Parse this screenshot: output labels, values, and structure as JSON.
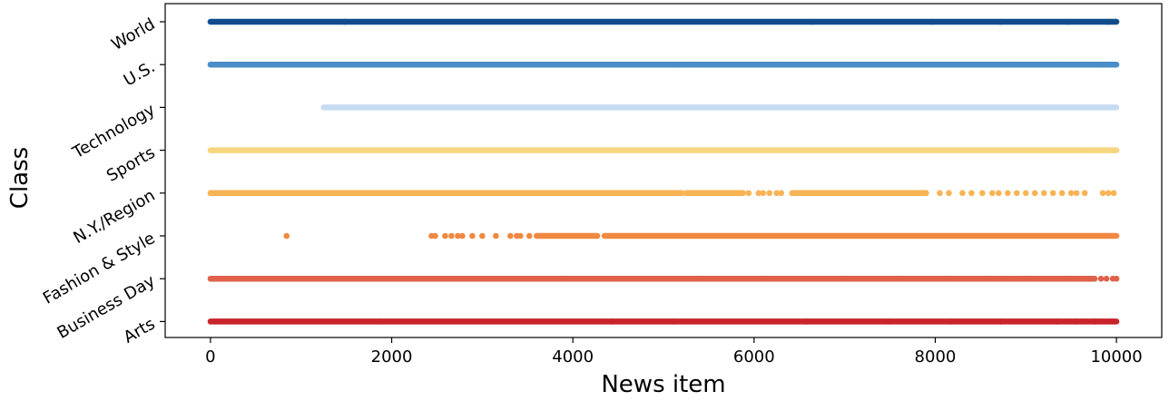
{
  "chart_data": {
    "type": "scatter",
    "title": "",
    "xlabel": "News item",
    "ylabel": "Class",
    "xlim": [
      -500,
      10500
    ],
    "xticks": [
      0,
      2000,
      4000,
      6000,
      8000,
      10000
    ],
    "xtick_labels": [
      "0",
      "2000",
      "4000",
      "6000",
      "8000",
      "10000"
    ],
    "categories": [
      "Arts",
      "Business Day",
      "Fashion & Style",
      "N.Y./Region",
      "Sports",
      "Technology",
      "U.S.",
      "World"
    ],
    "grid": false,
    "legend": false,
    "series": [
      {
        "category": "Arts",
        "color": "#c9232b",
        "dense_ranges": [
          [
            0,
            10000
          ]
        ],
        "points": [
          1880,
          4430,
          5120,
          6580,
          7480,
          8160,
          8720,
          9340,
          9550,
          9760,
          9950
        ]
      },
      {
        "category": "Business Day",
        "color": "#e0614a",
        "dense_ranges": [
          [
            0,
            9760
          ]
        ],
        "points": [
          3920,
          5410,
          6130,
          7000,
          7620,
          8140,
          8560,
          8800,
          9040,
          9480,
          9830,
          9890,
          9960,
          10000
        ]
      },
      {
        "category": "Fashion & Style",
        "color": "#f08840",
        "dense_ranges": [
          [
            3600,
            4270
          ],
          [
            4350,
            10000
          ]
        ],
        "points": [
          840,
          2440,
          2480,
          2590,
          2660,
          2730,
          2780,
          2890,
          3000,
          3150,
          3310,
          3380,
          3420,
          3520
        ]
      },
      {
        "category": "N.Y./Region",
        "color": "#f8b354",
        "dense_ranges": [
          [
            0,
            5200
          ],
          [
            5250,
            5880
          ],
          [
            6420,
            7900
          ]
        ],
        "points": [
          5940,
          6050,
          6100,
          6170,
          6250,
          6300,
          8050,
          8150,
          8300,
          8400,
          8520,
          8630,
          8700,
          8800,
          8900,
          9000,
          9100,
          9200,
          9300,
          9400,
          9500,
          9560,
          9650,
          9850,
          9910,
          9970
        ]
      },
      {
        "category": "Sports",
        "color": "#f6d57f",
        "dense_ranges": [
          [
            0,
            9600
          ],
          [
            9620,
            10000
          ]
        ],
        "points": []
      },
      {
        "category": "Technology",
        "color": "#c7dcf0",
        "dense_ranges": [
          [
            1250,
            10000
          ]
        ],
        "points": []
      },
      {
        "category": "U.S.",
        "color": "#4b8ec7",
        "dense_ranges": [
          [
            0,
            10000
          ]
        ],
        "points": [
          5120,
          5330,
          6280,
          7000,
          8860,
          9400,
          9620,
          9880
        ]
      },
      {
        "category": "World",
        "color": "#0f4c8c",
        "dense_ranges": [
          [
            0,
            10000
          ]
        ],
        "points": [
          1480,
          6640,
          7960,
          8720,
          9460,
          9900
        ]
      }
    ]
  }
}
